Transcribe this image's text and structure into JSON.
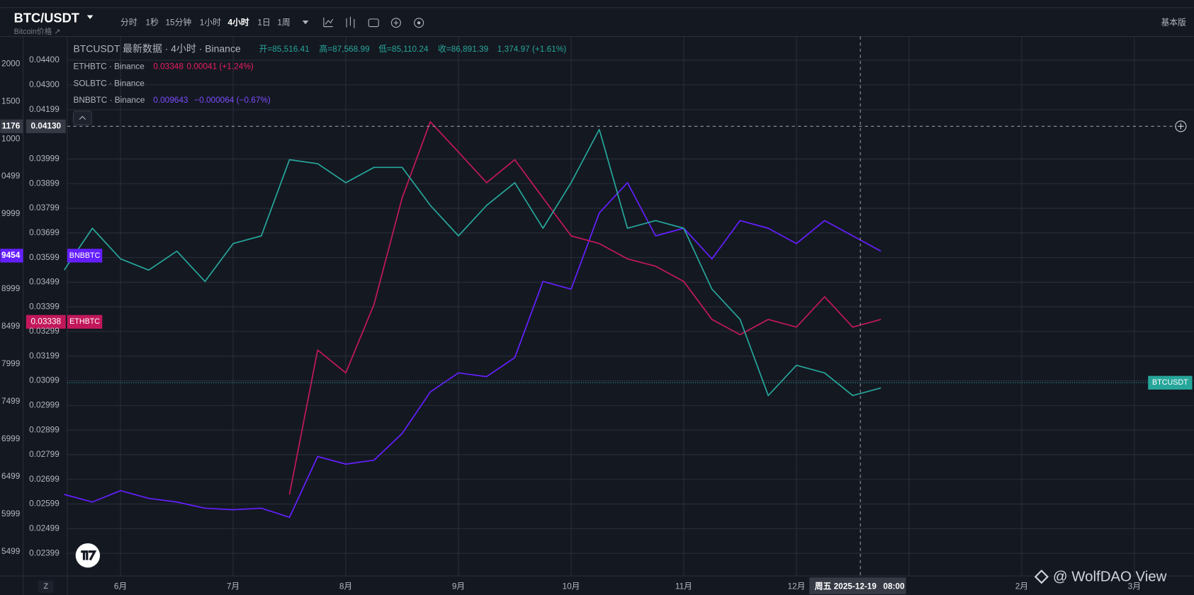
{
  "toolbar": {
    "symbol": "BTC/USDT",
    "subtitle": "Bitcoin价格 ↗",
    "timeframes": [
      "分时",
      "1秒",
      "15分钟",
      "1小时",
      "4小时",
      "1日",
      "1周"
    ],
    "mode": "基本版"
  },
  "legend": {
    "main": "BTCUSDT 最新数据 · 4小时 · Binance",
    "open": "开=85,516.41",
    "high": "高=87,568.99",
    "low": "低=85,110.24",
    "close": "收=86,891.39",
    "change": "1,374.97 (+1.61%)",
    "eth": "ETHBTC · Binance",
    "eth_last": "0.03348",
    "eth_change": "0.00041 (+1.24%)",
    "sol": "SOLBTC · Binance",
    "bnb": "BNBBTC · Binance",
    "bnb_last": "0.009643",
    "bnb_change": "−0.000064 (−0.67%)"
  },
  "labels": {
    "crosshair_price": "0.04130",
    "crosshair_left": "1176",
    "bnb_left": "9454",
    "eth_price": "0.03338",
    "crosshair_date": "周五 2025-12-19",
    "crosshair_time": "08:00",
    "zoom": "Z",
    "watermark": "@ WolfDAO View",
    "left_scale": [
      "2000",
      "1500",
      "1000",
      "0499",
      "9999",
      "8999",
      "8499",
      "7999",
      "7499",
      "6999",
      "6499",
      "5999",
      "5499"
    ]
  },
  "chart_data": {
    "type": "line",
    "categories": [
      null,
      null,
      "6月",
      null,
      null,
      null,
      "7月",
      null,
      null,
      null,
      "8月",
      null,
      null,
      null,
      "9月",
      null,
      null,
      null,
      "10月",
      null,
      null,
      null,
      "11月",
      null,
      null,
      null,
      "12月",
      null,
      null,
      null,
      null,
      null,
      null,
      null,
      "2月",
      null,
      null,
      null,
      "3月"
    ],
    "series": [
      {
        "name": "BNBBTC",
        "color": "#651fff",
        "values": [
          0.02638,
          0.02607,
          0.02653,
          0.02622,
          0.02607,
          0.02582,
          0.02576,
          0.02582,
          0.02545,
          0.02792,
          0.02761,
          0.02777,
          0.02885,
          0.03054,
          0.03131,
          0.03116,
          0.03193,
          0.03502,
          0.03471,
          0.0378,
          0.03903,
          0.03687,
          0.03718,
          0.03594,
          0.03749,
          0.03718,
          0.03656,
          0.03749,
          0.03687,
          0.03625,
          null,
          null,
          null,
          null,
          null,
          null,
          null,
          null,
          null
        ]
      },
      {
        "name": "ETHBTC",
        "color": "#c2185b",
        "values": [
          null,
          null,
          null,
          null,
          null,
          null,
          null,
          null,
          0.02638,
          0.03224,
          0.03131,
          0.03409,
          0.03841,
          0.0415,
          0.04027,
          0.03903,
          0.03996,
          0.03841,
          0.03687,
          0.03656,
          0.03594,
          0.03564,
          0.03502,
          0.03348,
          0.03286,
          0.03348,
          0.03317,
          0.0344,
          0.03317,
          0.03348,
          null,
          null,
          null,
          null,
          null,
          null,
          null,
          null,
          null
        ]
      },
      {
        "name": "BTCUSDT",
        "color": "#26a69a",
        "values": [
          0.03548,
          0.03718,
          0.03594,
          0.03548,
          0.03625,
          0.03502,
          0.03656,
          0.03687,
          0.03996,
          0.0398,
          0.03903,
          0.03965,
          0.03965,
          0.03811,
          0.03687,
          0.03811,
          0.03903,
          0.03718,
          0.03903,
          0.04119,
          0.03718,
          0.03749,
          0.03718,
          0.03471,
          0.03348,
          0.03039,
          0.03162,
          0.03131,
          0.03039,
          0.0307,
          null,
          null,
          null,
          null,
          null,
          null,
          null,
          null,
          null
        ]
      }
    ],
    "ylim": [
      0.02307,
      0.04496
    ],
    "yticks": [
      {
        "value": 0.044,
        "label": "0.04400"
      },
      {
        "value": 0.043,
        "label": "0.04300"
      },
      0.04199,
      0.03999,
      0.03899,
      0.03799,
      0.03699,
      0.03599,
      0.03499,
      0.03399,
      0.03299,
      0.03199,
      0.03099,
      0.02999,
      0.02899,
      0.02799,
      0.02699,
      0.02599,
      0.02499,
      0.02399
    ],
    "grid": true
  }
}
